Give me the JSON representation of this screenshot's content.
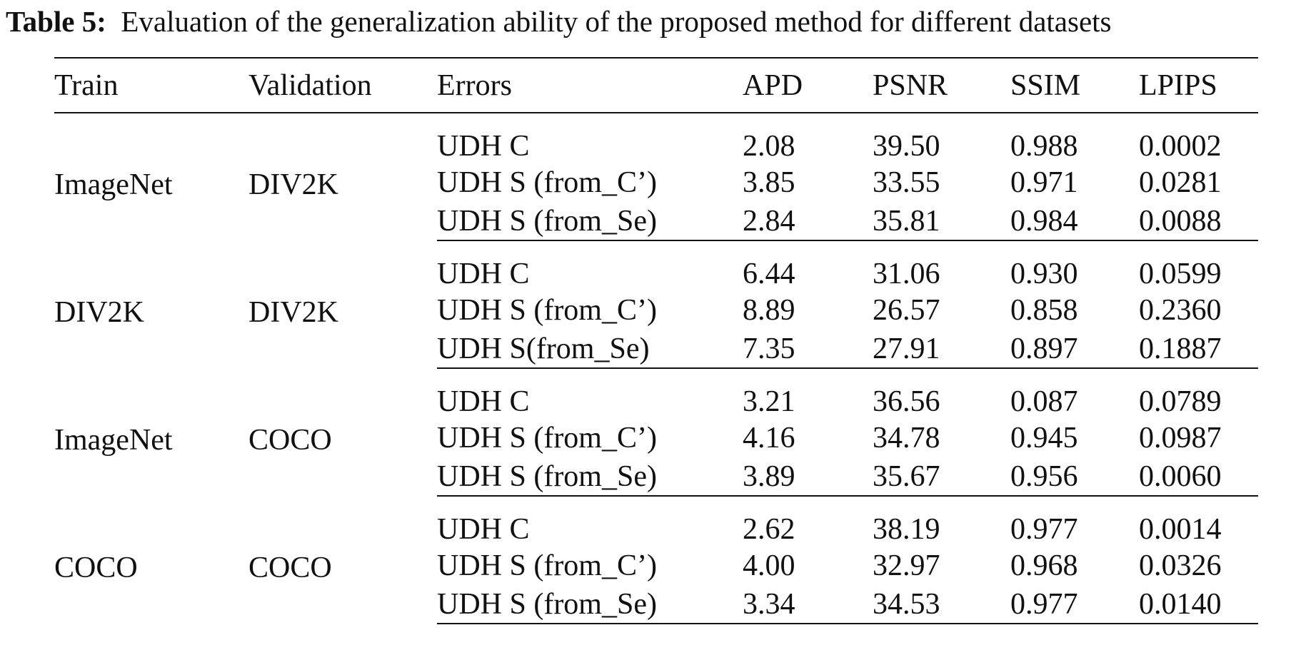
{
  "caption": {
    "label": "Table 5:",
    "text": "Evaluation of the generalization ability of the proposed method for different datasets"
  },
  "headers": [
    "Train",
    "Validation",
    "Errors",
    "APD",
    "PSNR",
    "SSIM",
    "LPIPS"
  ],
  "groups": [
    {
      "train": "ImageNet",
      "validation": "DIV2K",
      "rows": [
        {
          "errors": "UDH C",
          "apd": "2.08",
          "psnr": "39.50",
          "ssim": "0.988",
          "lpips": "0.0002",
          "psnr_bold": true
        },
        {
          "errors": "UDH S (from_C’)",
          "apd": "3.85",
          "psnr": "33.55",
          "ssim": "0.971",
          "lpips": "0.0281",
          "psnr_bold": false
        },
        {
          "errors": "UDH S (from_Se)",
          "apd": "2.84",
          "psnr": "35.81",
          "ssim": "0.984",
          "lpips": "0.0088",
          "psnr_bold": false
        }
      ]
    },
    {
      "train": "DIV2K",
      "validation": "DIV2K",
      "rows": [
        {
          "errors": "UDH C",
          "apd": "6.44",
          "psnr": "31.06",
          "ssim": "0.930",
          "lpips": "0.0599",
          "psnr_bold": false
        },
        {
          "errors": "UDH S (from_C’)",
          "apd": "8.89",
          "psnr": "26.57",
          "ssim": "0.858",
          "lpips": "0.2360",
          "psnr_bold": false
        },
        {
          "errors": "UDH S(from_Se)",
          "apd": "7.35",
          "psnr": "27.91",
          "ssim": "0.897",
          "lpips": "0.1887",
          "psnr_bold": false
        }
      ]
    },
    {
      "train": "ImageNet",
      "validation": "COCO",
      "rows": [
        {
          "errors": "UDH C",
          "apd": "3.21",
          "psnr": "36.56",
          "ssim": "0.087",
          "lpips": "0.0789",
          "psnr_bold": true
        },
        {
          "errors": "UDH S (from_C’)",
          "apd": "4.16",
          "psnr": "34.78",
          "ssim": "0.945",
          "lpips": "0.0987",
          "psnr_bold": false
        },
        {
          "errors": "UDH S (from_Se)",
          "apd": "3.89",
          "psnr": "35.67",
          "ssim": "0.956",
          "lpips": "0.0060",
          "psnr_bold": true
        }
      ]
    },
    {
      "train": "COCO",
      "validation": "COCO",
      "rows": [
        {
          "errors": "UDH C",
          "apd": "2.62",
          "psnr": "38.19",
          "ssim": "0.977",
          "lpips": "0.0014",
          "psnr_bold": true
        },
        {
          "errors": "UDH S (from_C’)",
          "apd": "4.00",
          "psnr": "32.97",
          "ssim": "0.968",
          "lpips": "0.0326",
          "psnr_bold": false
        },
        {
          "errors": "UDH S (from_Se)",
          "apd": "3.34",
          "psnr": "34.53",
          "ssim": "0.977",
          "lpips": "0.0140",
          "psnr_bold": false
        }
      ]
    }
  ]
}
